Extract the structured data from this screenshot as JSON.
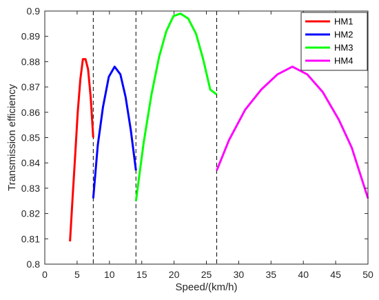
{
  "chart_data": {
    "type": "line",
    "title": "",
    "xlabel": "Speed/(km/h)",
    "ylabel": "Transmission efficiency",
    "xlim": [
      0,
      50
    ],
    "ylim": [
      0.8,
      0.9
    ],
    "x_ticks": [
      0,
      5,
      10,
      15,
      20,
      25,
      30,
      35,
      40,
      45,
      50
    ],
    "y_ticks": [
      0.8,
      0.81,
      0.82,
      0.83,
      0.84,
      0.85,
      0.86,
      0.87,
      0.88,
      0.89,
      0.9
    ],
    "grid": false,
    "legend_position": "top-right",
    "boundaries": [
      7.5,
      14.1,
      26.6
    ],
    "series": [
      {
        "name": "HM1",
        "color": "#ff0000",
        "points": [
          [
            3.9,
            0.809
          ],
          [
            4.3,
            0.826
          ],
          [
            4.7,
            0.843
          ],
          [
            5.1,
            0.86
          ],
          [
            5.5,
            0.873
          ],
          [
            5.9,
            0.881
          ],
          [
            6.3,
            0.881
          ],
          [
            6.7,
            0.877
          ],
          [
            7.1,
            0.866
          ],
          [
            7.5,
            0.85
          ]
        ]
      },
      {
        "name": "HM2",
        "color": "#0000ff",
        "points": [
          [
            7.5,
            0.826
          ],
          [
            8.2,
            0.847
          ],
          [
            9.0,
            0.862
          ],
          [
            9.9,
            0.874
          ],
          [
            10.8,
            0.878
          ],
          [
            11.7,
            0.875
          ],
          [
            12.5,
            0.866
          ],
          [
            13.3,
            0.853
          ],
          [
            14.1,
            0.837
          ]
        ]
      },
      {
        "name": "HM3",
        "color": "#00ff00",
        "points": [
          [
            14.1,
            0.825
          ],
          [
            15.3,
            0.848
          ],
          [
            16.5,
            0.867
          ],
          [
            17.7,
            0.882
          ],
          [
            18.8,
            0.892
          ],
          [
            19.9,
            0.898
          ],
          [
            21.0,
            0.899
          ],
          [
            22.2,
            0.897
          ],
          [
            23.4,
            0.891
          ],
          [
            24.5,
            0.881
          ],
          [
            25.6,
            0.869
          ],
          [
            26.6,
            0.867
          ]
        ]
      },
      {
        "name": "HM4",
        "color": "#ff00ff",
        "points": [
          [
            26.6,
            0.837
          ],
          [
            28.5,
            0.849
          ],
          [
            31.0,
            0.861
          ],
          [
            33.5,
            0.869
          ],
          [
            36.0,
            0.875
          ],
          [
            38.3,
            0.878
          ],
          [
            40.6,
            0.875
          ],
          [
            43.0,
            0.868
          ],
          [
            45.5,
            0.857
          ],
          [
            47.5,
            0.846
          ],
          [
            50.0,
            0.826
          ]
        ]
      }
    ]
  }
}
